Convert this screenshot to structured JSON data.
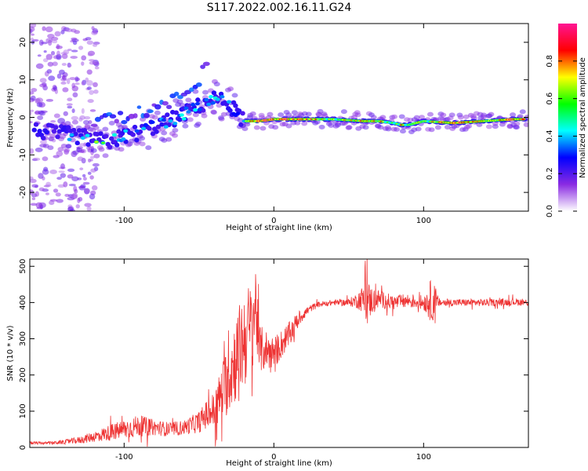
{
  "figure_title": "S117.2022.002.16.11.G24",
  "chart_data": [
    {
      "type": "heatmap",
      "title": "",
      "xlabel": "Height of straight line (km)",
      "ylabel": "Frequency (Hz)",
      "xlim": [
        -163,
        170
      ],
      "ylim": [
        -25,
        25
      ],
      "xticks": [
        -100,
        0,
        100
      ],
      "yticks": [
        -20,
        -10,
        0,
        10,
        20
      ],
      "colorbar": {
        "label": "Normalized spectral amplitude",
        "range": [
          0.0,
          1.0
        ],
        "ticks": [
          0.0,
          0.2,
          0.4,
          0.6,
          0.8
        ],
        "colormap": [
          "#ffffff",
          "#8a2be2",
          "#0000ff",
          "#00ffff",
          "#00ff00",
          "#ffff00",
          "#ff0000",
          "#ff1493"
        ]
      },
      "ridge": {
        "x": [
          -160,
          -140,
          -130,
          -120,
          -110,
          -100,
          -90,
          -80,
          -70,
          -60,
          -50,
          -40,
          -32,
          -25,
          -20,
          -10,
          0,
          20,
          40,
          60,
          70,
          80,
          85,
          90,
          100,
          120,
          140,
          160,
          168
        ],
        "y": [
          -3.5,
          -4.5,
          -5,
          -6,
          -6.5,
          -5,
          -4,
          -2.5,
          -1,
          1,
          3,
          5,
          4,
          1.5,
          -1,
          -1,
          -0.5,
          -0.5,
          -0.5,
          -1,
          -1,
          -1.5,
          -2,
          -2,
          -1,
          -1.5,
          -1,
          -0.5,
          -0.5
        ],
        "amplitude": [
          0.25,
          0.45,
          0.55,
          0.65,
          0.6,
          0.55,
          0.55,
          0.5,
          0.5,
          0.55,
          0.55,
          0.55,
          0.5,
          0.4,
          0.6,
          0.95,
          0.95,
          0.9,
          0.7,
          0.85,
          0.8,
          0.7,
          0.8,
          0.75,
          0.7,
          0.95,
          0.75,
          0.95,
          0.9
        ]
      },
      "secondary_branch": {
        "x": [
          -120,
          -100,
          -85,
          -70,
          -60,
          -50,
          -45
        ],
        "y": [
          -1,
          0,
          2,
          4,
          7,
          10,
          15
        ]
      }
    },
    {
      "type": "line",
      "title": "",
      "xlabel": "Height of straight line (km)",
      "ylabel": "SNR (10 * v/v)",
      "xlim": [
        -163,
        170
      ],
      "ylim": [
        0,
        520
      ],
      "xticks": [
        -100,
        0,
        100
      ],
      "yticks": [
        0,
        100,
        200,
        300,
        400,
        500
      ],
      "color": "#ee3333",
      "series": [
        {
          "x": [
            -163,
            -150,
            -140,
            -130,
            -120,
            -110,
            -100,
            -90,
            -80,
            -70,
            -60,
            -50,
            -45,
            -40,
            -35,
            -30,
            -25,
            -20,
            -15,
            -12,
            -10,
            -5,
            0,
            5,
            10,
            15,
            20,
            25,
            30,
            40,
            50,
            55,
            60,
            62,
            65,
            70,
            80,
            90,
            100,
            105,
            108,
            110,
            120,
            130,
            140,
            150,
            160,
            170
          ],
          "values": [
            12,
            12,
            15,
            20,
            30,
            40,
            50,
            60,
            55,
            50,
            55,
            70,
            90,
            100,
            150,
            200,
            250,
            300,
            330,
            400,
            270,
            270,
            260,
            285,
            310,
            345,
            370,
            385,
            395,
            400,
            400,
            405,
            410,
            400,
            405,
            410,
            400,
            405,
            400,
            405,
            400,
            400,
            400,
            400,
            400,
            400,
            402,
            400
          ],
          "noise": [
            4,
            4,
            6,
            10,
            15,
            22,
            28,
            30,
            22,
            20,
            20,
            30,
            40,
            55,
            75,
            110,
            120,
            140,
            130,
            120,
            70,
            55,
            45,
            40,
            35,
            25,
            15,
            10,
            8,
            8,
            10,
            20,
            40,
            70,
            40,
            25,
            20,
            20,
            20,
            60,
            45,
            12,
            10,
            10,
            10,
            10,
            10,
            10
          ]
        }
      ]
    }
  ]
}
